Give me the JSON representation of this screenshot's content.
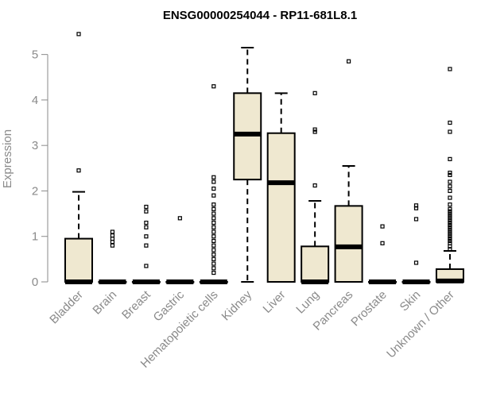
{
  "chart_data": {
    "type": "boxplot",
    "title": "ENSG00000254044 - RP11-681L8.1",
    "xlabel": "",
    "ylabel": "Expression",
    "ylim": [
      0,
      5.5
    ],
    "yticks": [
      0,
      1,
      2,
      3,
      4,
      5
    ],
    "grid": false,
    "colors": {
      "box_fill": "#efe8d0",
      "stroke": "#000000",
      "axis": "#8a8a8a"
    },
    "categories": [
      "Bladder",
      "Brain",
      "Breast",
      "Gastric",
      "Hematopoietic cells",
      "Kidney",
      "Liver",
      "Lung",
      "Pancreas",
      "Prostate",
      "Skin",
      "Unknown / Other"
    ],
    "boxes": [
      {
        "q1": 0,
        "median": 0,
        "q3": 0.95,
        "whisker_low": 0,
        "whisker_high": 1.98,
        "outliers": [
          2.45,
          5.45
        ]
      },
      {
        "q1": 0,
        "median": 0,
        "q3": 0,
        "whisker_low": 0,
        "whisker_high": 0,
        "outliers": [
          0.8,
          0.88,
          0.95,
          1.02,
          1.1
        ]
      },
      {
        "q1": 0,
        "median": 0,
        "q3": 0,
        "whisker_low": 0,
        "whisker_high": 0,
        "outliers": [
          0.35,
          0.8,
          1.0,
          1.2,
          1.3,
          1.55,
          1.65
        ]
      },
      {
        "q1": 0,
        "median": 0,
        "q3": 0,
        "whisker_low": 0,
        "whisker_high": 0,
        "outliers": [
          1.4
        ]
      },
      {
        "q1": 0,
        "median": 0,
        "q3": 0,
        "whisker_low": 0,
        "whisker_high": 0,
        "outliers": [
          0.2,
          0.3,
          0.4,
          0.5,
          0.6,
          0.7,
          0.8,
          0.9,
          1.0,
          1.1,
          1.2,
          1.3,
          1.4,
          1.5,
          1.6,
          1.7,
          1.9,
          2.05,
          2.2,
          2.3,
          4.3
        ]
      },
      {
        "q1": 2.25,
        "median": 3.25,
        "q3": 4.15,
        "whisker_low": 0,
        "whisker_high": 5.15,
        "outliers": []
      },
      {
        "q1": 0,
        "median": 2.18,
        "q3": 3.27,
        "whisker_low": 0,
        "whisker_high": 4.15,
        "outliers": []
      },
      {
        "q1": 0,
        "median": 0,
        "q3": 0.78,
        "whisker_low": 0,
        "whisker_high": 1.78,
        "outliers": [
          2.12,
          3.3,
          3.35,
          4.15
        ]
      },
      {
        "q1": 0,
        "median": 0.77,
        "q3": 1.67,
        "whisker_low": 0,
        "whisker_high": 2.55,
        "outliers": [
          4.85
        ]
      },
      {
        "q1": 0,
        "median": 0,
        "q3": 0,
        "whisker_low": 0,
        "whisker_high": 0,
        "outliers": [
          0.85,
          1.22
        ]
      },
      {
        "q1": 0,
        "median": 0,
        "q3": 0,
        "whisker_low": 0,
        "whisker_high": 0,
        "outliers": [
          0.42,
          1.38,
          1.62,
          1.68
        ]
      },
      {
        "q1": 0,
        "median": 0.02,
        "q3": 0.28,
        "whisker_low": 0,
        "whisker_high": 0.68,
        "outliers": [
          0.72,
          0.78,
          0.85,
          0.9,
          0.95,
          1.0,
          1.05,
          1.1,
          1.15,
          1.2,
          1.25,
          1.3,
          1.35,
          1.4,
          1.45,
          1.5,
          1.55,
          1.6,
          1.7,
          1.85,
          2.0,
          2.1,
          2.2,
          2.35,
          2.4,
          2.7,
          3.3,
          3.5,
          4.68
        ]
      }
    ]
  }
}
